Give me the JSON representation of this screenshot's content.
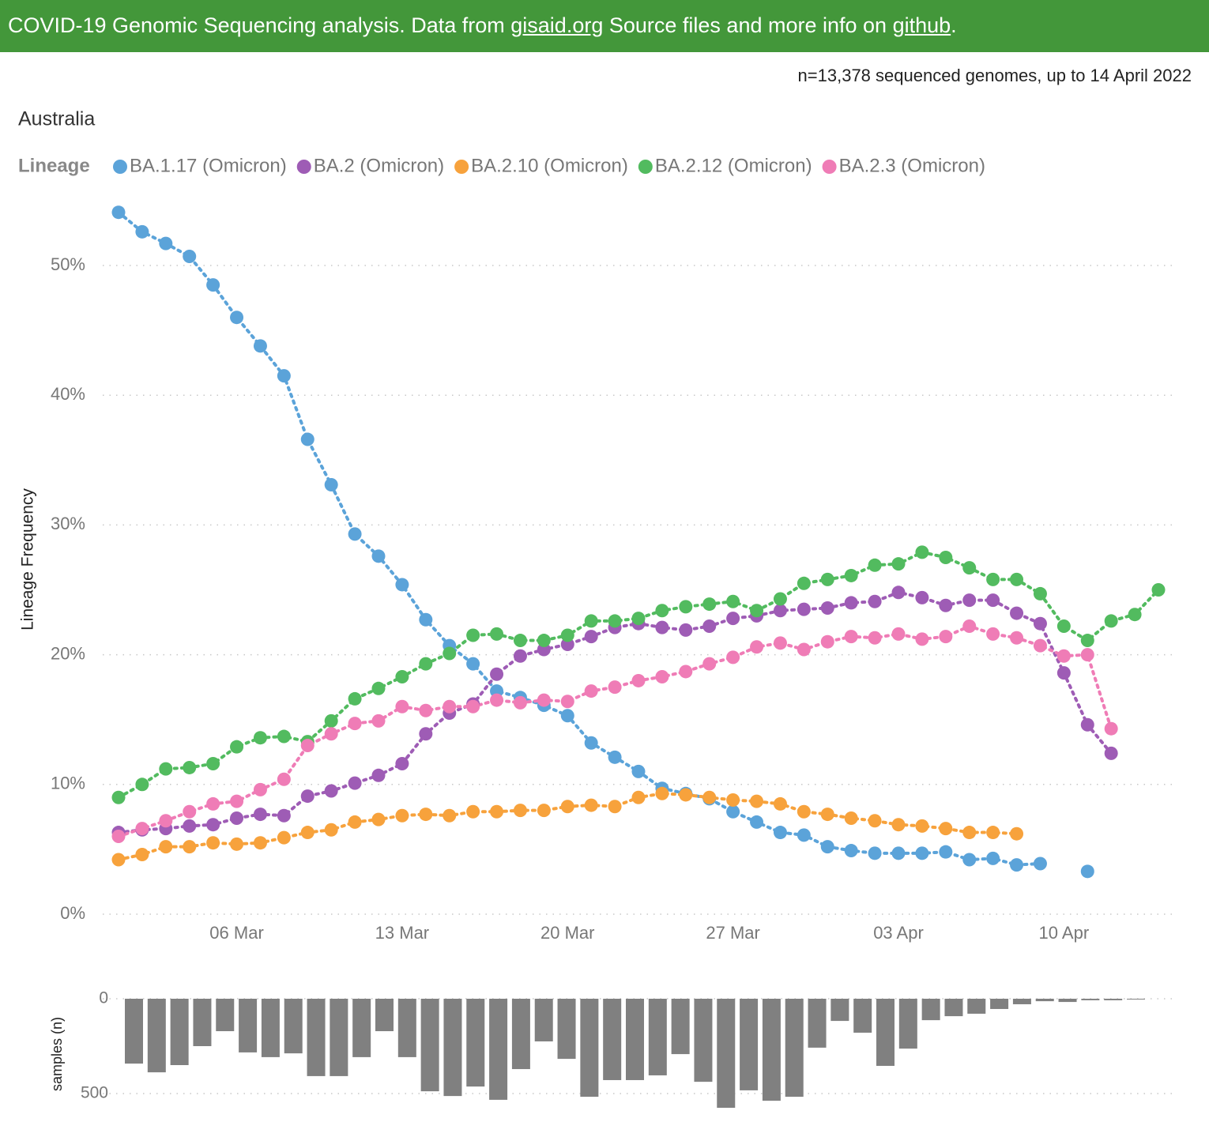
{
  "header": {
    "text_before": "COVID-19 Genomic Sequencing analysis. Data from ",
    "link1": "gisaid.org",
    "text_middle": " Source files and more info on ",
    "link2": "github",
    "text_after": "."
  },
  "note": "n=13,378 sequenced genomes, up to 14 April 2022",
  "chart_data": [
    {
      "type": "line",
      "title": "Australia",
      "legend_title": "Lineage",
      "ylabel": "Lineage Frequency",
      "grid": true,
      "x": [
        "01 Mar",
        "02 Mar",
        "03 Mar",
        "04 Mar",
        "05 Mar",
        "06 Mar",
        "07 Mar",
        "08 Mar",
        "09 Mar",
        "10 Mar",
        "11 Mar",
        "12 Mar",
        "13 Mar",
        "14 Mar",
        "15 Mar",
        "16 Mar",
        "17 Mar",
        "18 Mar",
        "19 Mar",
        "20 Mar",
        "21 Mar",
        "22 Mar",
        "23 Mar",
        "24 Mar",
        "25 Mar",
        "26 Mar",
        "27 Mar",
        "28 Mar",
        "29 Mar",
        "30 Mar",
        "31 Mar",
        "01 Apr",
        "02 Apr",
        "03 Apr",
        "04 Apr",
        "05 Apr",
        "06 Apr",
        "07 Apr",
        "08 Apr",
        "09 Apr",
        "10 Apr",
        "11 Apr",
        "12 Apr",
        "13 Apr",
        "14 Apr"
      ],
      "xticks": [
        "06 Mar",
        "13 Mar",
        "20 Mar",
        "27 Mar",
        "03 Apr",
        "10 Apr"
      ],
      "ylim": [
        0,
        56
      ],
      "yticks": [
        {
          "value": 0,
          "label": "0%"
        },
        {
          "value": 10,
          "label": "10%"
        },
        {
          "value": 20,
          "label": "20%"
        },
        {
          "value": 30,
          "label": "30%"
        },
        {
          "value": 40,
          "label": "40%"
        },
        {
          "value": 50,
          "label": "50%"
        }
      ],
      "series": [
        {
          "name": "BA.1.17 (Omicron)",
          "color": "#5ba3d9",
          "values": [
            54.1,
            52.6,
            51.7,
            50.7,
            48.5,
            46.0,
            43.8,
            41.5,
            36.6,
            33.1,
            29.3,
            27.6,
            25.4,
            22.7,
            20.7,
            19.3,
            17.2,
            16.7,
            16.1,
            15.3,
            13.2,
            12.1,
            11.0,
            9.7,
            9.3,
            8.9,
            7.9,
            7.1,
            6.3,
            6.1,
            5.2,
            4.9,
            4.7,
            4.7,
            4.7,
            4.8,
            4.2,
            4.3,
            3.8,
            3.9,
            null,
            3.3,
            null,
            null,
            null
          ]
        },
        {
          "name": "BA.2 (Omicron)",
          "color": "#9e5cb5",
          "values": [
            6.3,
            6.5,
            6.6,
            6.8,
            6.9,
            7.4,
            7.7,
            7.6,
            9.1,
            9.5,
            10.1,
            10.7,
            11.6,
            13.9,
            15.5,
            16.2,
            18.5,
            19.9,
            20.4,
            20.8,
            21.4,
            22.1,
            22.4,
            22.1,
            21.9,
            22.2,
            22.8,
            23.0,
            23.4,
            23.5,
            23.6,
            24.0,
            24.1,
            24.8,
            24.4,
            23.8,
            24.2,
            24.2,
            23.2,
            22.4,
            18.6,
            14.6,
            12.4,
            null,
            null
          ]
        },
        {
          "name": "BA.2.10 (Omicron)",
          "color": "#f7a23c",
          "values": [
            4.2,
            4.6,
            5.2,
            5.2,
            5.5,
            5.4,
            5.5,
            5.9,
            6.3,
            6.5,
            7.1,
            7.3,
            7.6,
            7.7,
            7.6,
            7.9,
            7.9,
            8.0,
            8.0,
            8.3,
            8.4,
            8.3,
            9.0,
            9.3,
            9.2,
            9.0,
            8.8,
            8.7,
            8.5,
            7.9,
            7.7,
            7.4,
            7.2,
            6.9,
            6.8,
            6.6,
            6.3,
            6.3,
            6.2,
            null,
            null,
            null,
            null,
            null,
            null
          ]
        },
        {
          "name": "BA.2.12 (Omicron)",
          "color": "#52bb5f",
          "values": [
            9.0,
            10.0,
            11.2,
            11.3,
            11.6,
            12.9,
            13.6,
            13.7,
            13.3,
            14.9,
            16.6,
            17.4,
            18.3,
            19.3,
            20.1,
            21.5,
            21.6,
            21.1,
            21.1,
            21.5,
            22.6,
            22.6,
            22.8,
            23.4,
            23.7,
            23.9,
            24.1,
            23.4,
            24.3,
            25.5,
            25.8,
            26.1,
            26.9,
            27.0,
            27.9,
            27.5,
            26.7,
            25.8,
            25.8,
            24.7,
            22.2,
            21.1,
            22.6,
            23.1,
            25.0
          ]
        },
        {
          "name": "BA.2.3 (Omicron)",
          "color": "#ef7cb6",
          "values": [
            6.0,
            6.6,
            7.2,
            7.9,
            8.5,
            8.7,
            9.6,
            10.4,
            13.0,
            13.9,
            14.7,
            14.9,
            16.0,
            15.7,
            16.0,
            16.0,
            16.5,
            16.3,
            16.5,
            16.4,
            17.2,
            17.5,
            18.0,
            18.3,
            18.7,
            19.3,
            19.8,
            20.6,
            20.9,
            20.4,
            21.0,
            21.4,
            21.3,
            21.6,
            21.2,
            21.4,
            22.2,
            21.6,
            21.3,
            20.7,
            19.9,
            20.0,
            14.3,
            null,
            null
          ]
        }
      ]
    },
    {
      "type": "bar",
      "ylabel": "samples (n)",
      "color": "#808080",
      "y_reversed": true,
      "grid": true,
      "ylim": [
        0,
        600
      ],
      "yticks": [
        0,
        500
      ],
      "values": [
        342,
        388,
        350,
        250,
        171,
        283,
        308,
        288,
        408,
        408,
        308,
        171,
        308,
        488,
        513,
        463,
        533,
        371,
        225,
        317,
        517,
        429,
        429,
        404,
        292,
        438,
        575,
        483,
        538,
        517,
        258,
        117,
        179,
        354,
        263,
        113,
        92,
        79,
        54,
        29,
        13,
        17,
        8,
        8,
        4
      ]
    }
  ]
}
